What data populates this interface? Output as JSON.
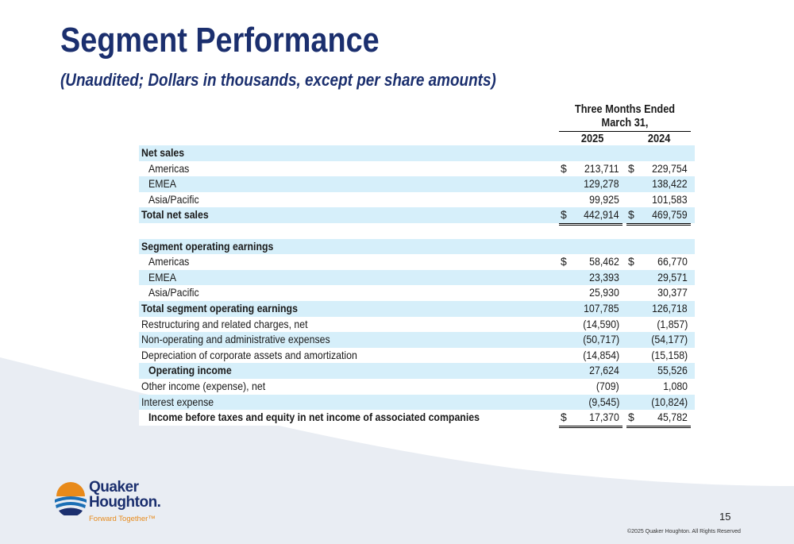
{
  "title": "Segment Performance",
  "subtitle": "(Unaudited; Dollars in thousands, except per share amounts)",
  "header": {
    "period_line1": "Three Months Ended",
    "period_line2": "March 31,",
    "year1": "2025",
    "year2": "2024"
  },
  "rows": [
    {
      "label": "Net sales",
      "v1": "",
      "v2": "",
      "d1": "",
      "d2": ""
    },
    {
      "label": "Americas",
      "v1": "213,711",
      "v2": "229,754",
      "d1": "$",
      "d2": "$"
    },
    {
      "label": "EMEA",
      "v1": "129,278",
      "v2": "138,422",
      "d1": "",
      "d2": ""
    },
    {
      "label": "Asia/Pacific",
      "v1": "99,925",
      "v2": "101,583",
      "d1": "",
      "d2": ""
    },
    {
      "label": "Total net sales",
      "v1": "442,914",
      "v2": "469,759",
      "d1": "$",
      "d2": "$"
    },
    {
      "label": "",
      "v1": "",
      "v2": "",
      "d1": "",
      "d2": ""
    },
    {
      "label": "Segment operating earnings",
      "v1": "",
      "v2": "",
      "d1": "",
      "d2": ""
    },
    {
      "label": "Americas",
      "v1": "58,462",
      "v2": "66,770",
      "d1": "$",
      "d2": "$"
    },
    {
      "label": "EMEA",
      "v1": "23,393",
      "v2": "29,571",
      "d1": "",
      "d2": ""
    },
    {
      "label": "Asia/Pacific",
      "v1": "25,930",
      "v2": "30,377",
      "d1": "",
      "d2": ""
    },
    {
      "label": "Total segment operating earnings",
      "v1": "107,785",
      "v2": "126,718",
      "d1": "",
      "d2": ""
    },
    {
      "label": "Restructuring and related charges, net",
      "v1": "(14,590)",
      "v2": "(1,857)",
      "d1": "",
      "d2": ""
    },
    {
      "label": "Non-operating and administrative expenses",
      "v1": "(50,717)",
      "v2": "(54,177)",
      "d1": "",
      "d2": ""
    },
    {
      "label": "Depreciation of corporate assets and amortization",
      "v1": "(14,854)",
      "v2": "(15,158)",
      "d1": "",
      "d2": ""
    },
    {
      "label": "Operating income",
      "v1": "27,624",
      "v2": "55,526",
      "d1": "",
      "d2": ""
    },
    {
      "label": "Other income (expense), net",
      "v1": "(709)",
      "v2": "1,080",
      "d1": "",
      "d2": ""
    },
    {
      "label": "Interest expense",
      "v1": "(9,545)",
      "v2": "(10,824)",
      "d1": "",
      "d2": ""
    },
    {
      "label": "Income before taxes and equity in net income of associated companies",
      "v1": "17,370",
      "v2": "45,782",
      "d1": "$",
      "d2": "$"
    }
  ],
  "logo": {
    "line1": "Quaker",
    "line2": "Houghton.",
    "tagline": "Forward Together™"
  },
  "page_number": "15",
  "copyright": "©2025 Quaker Houghton. All Rights Reserved",
  "colors": {
    "title": "#1b2f6e",
    "row_shade": "#d6effa",
    "logo_orange": "#e88a1a",
    "logo_blue": "#1b6fb5",
    "background_wave": "#e9edf3"
  }
}
